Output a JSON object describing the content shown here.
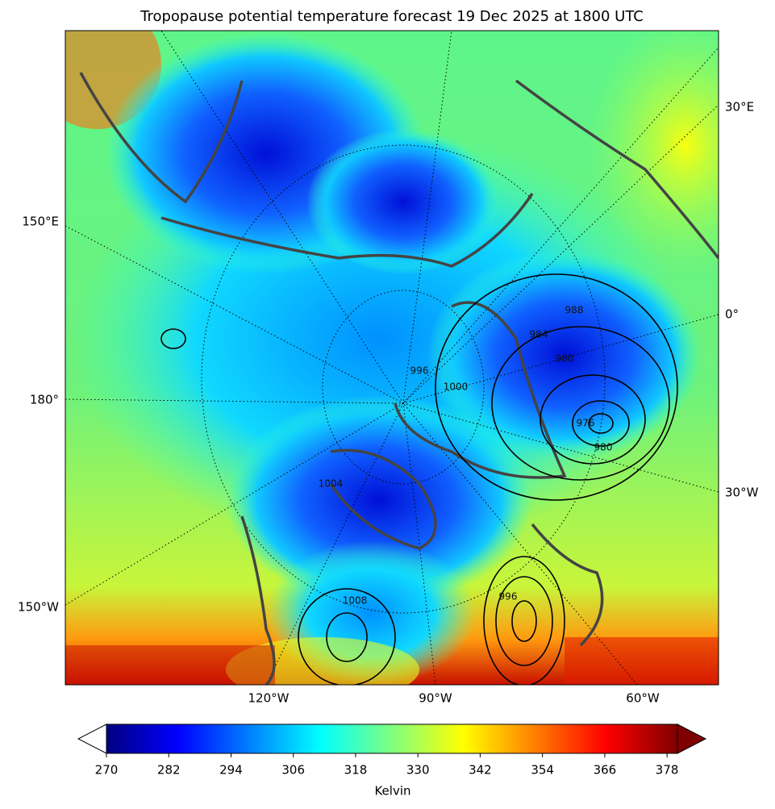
{
  "title": "Tropopause potential temperature forecast 19 Dec 2025 at 1800 UTC",
  "map": {
    "bottom_labels": [
      "120°W",
      "90°W",
      "60°W"
    ],
    "left_labels": [
      "150°E",
      "180°",
      "150°W"
    ],
    "right_labels": [
      "30°E",
      "0°",
      "30°W"
    ],
    "contour_labels": [
      "988",
      "984",
      "980",
      "976",
      "980",
      "1000",
      "996",
      "1004",
      "1008",
      "996"
    ]
  },
  "colorbar": {
    "label": "Kelvin",
    "colormap": "jet",
    "range": [
      270,
      380
    ],
    "ticks": [
      270,
      282,
      294,
      306,
      318,
      330,
      342,
      354,
      366,
      378
    ]
  }
}
